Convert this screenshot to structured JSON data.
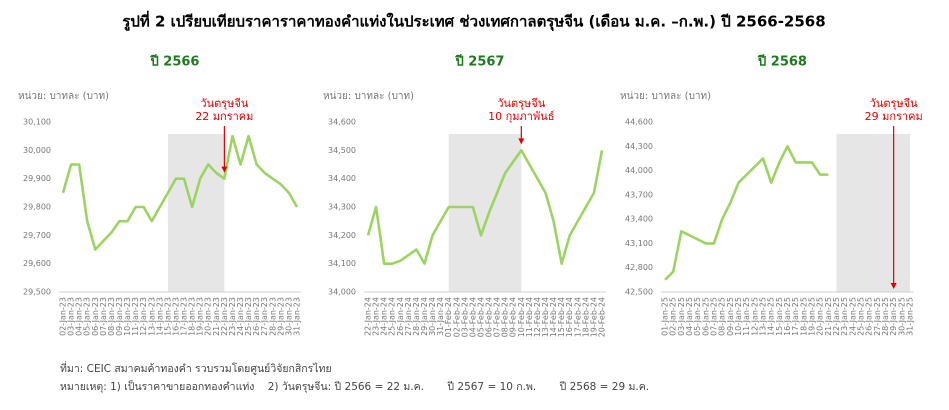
{
  "title": "รูปที่ 2 เปรียบเทียบราคาราคาทองคำแท่งในประเทศ ช่วงเทศกาลตรุษจีน (เดือน ม.ค. –ก.พ.) ปี 2566-2568",
  "chart_data": [
    {
      "type": "line",
      "title": "ปี 2566",
      "y_label": "หน่วย: บาทละ (บาท)",
      "color": "#9cd462",
      "grid": false,
      "categories": [
        "02-Jan-23",
        "03-Jan-23",
        "04-Jan-23",
        "05-Jan-23",
        "06-Jan-23",
        "07-Jan-23",
        "08-Jan-23",
        "09-Jan-23",
        "10-Jan-23",
        "11-Jan-23",
        "12-Jan-23",
        "13-Jan-23",
        "14-Jan-23",
        "15-Jan-23",
        "16-Jan-23",
        "17-Jan-23",
        "18-Jan-23",
        "19-Jan-23",
        "20-Jan-23",
        "21-Jan-23",
        "22-Jan-23",
        "23-Jan-23",
        "24-Jan-23",
        "25-Jan-23",
        "26-Jan-23",
        "27-Jan-23",
        "28-Jan-23",
        "29-Jan-23",
        "30-Jan-23",
        "31-Jan-23"
      ],
      "values": [
        29850,
        29950,
        29950,
        29750,
        29650,
        29680,
        29710,
        29750,
        29750,
        29800,
        29800,
        29750,
        29800,
        29850,
        29900,
        29900,
        29800,
        29900,
        29950,
        29920,
        29900,
        30050,
        29950,
        30050,
        29950,
        29920,
        29900,
        29880,
        29850,
        29800
      ],
      "ylim": [
        29500,
        30100
      ],
      "yticks": [
        {
          "value": 29500,
          "label": "29,500"
        },
        {
          "value": 29600,
          "label": "29,600"
        },
        {
          "value": 29700,
          "label": "29,700"
        },
        {
          "value": 29800,
          "label": "29,800"
        },
        {
          "value": 29900,
          "label": "29,900"
        },
        {
          "value": 30000,
          "label": "30,000"
        },
        {
          "value": 30100,
          "label": "30,100"
        }
      ],
      "highlight": [
        "15-Jan-23",
        "22-Jan-23"
      ],
      "annotation": {
        "text": [
          "วันตรุษจีน",
          "22 มกราคม"
        ],
        "category": "22-Jan-23",
        "color": "#e00000"
      }
    },
    {
      "type": "line",
      "title": "ปี 2567",
      "y_label": "หน่วย: บาทละ (บาท)",
      "color": "#9cd462",
      "grid": false,
      "categories": [
        "22-Jan-24",
        "23-Jan-24",
        "24-Jan-24",
        "25-Jan-24",
        "26-Jan-24",
        "27-Jan-24",
        "28-Jan-24",
        "29-Jan-24",
        "30-Jan-24",
        "31-Jan-24",
        "01-Feb-24",
        "02-Feb-24",
        "03-Feb-24",
        "04-Feb-24",
        "05-Feb-24",
        "06-Feb-24",
        "07-Feb-24",
        "08-Feb-24",
        "09-Feb-24",
        "10-Feb-24",
        "11-Feb-24",
        "12-Feb-24",
        "13-Feb-24",
        "14-Feb-24",
        "15-Feb-24",
        "16-Feb-24",
        "17-Feb-24",
        "18-Feb-24",
        "19-Feb-24",
        "20-Feb-24"
      ],
      "values": [
        34200,
        34300,
        34100,
        34100,
        34110,
        34130,
        34150,
        34100,
        34200,
        34250,
        34300,
        34300,
        34300,
        34300,
        34200,
        34280,
        34350,
        34420,
        34460,
        34500,
        34450,
        34400,
        34350,
        34250,
        34100,
        34200,
        34250,
        34300,
        34350,
        34500
      ],
      "ylim": [
        34000,
        34600
      ],
      "yticks": [
        {
          "value": 34000,
          "label": "34,000"
        },
        {
          "value": 34100,
          "label": "34,100"
        },
        {
          "value": 34200,
          "label": "34,200"
        },
        {
          "value": 34300,
          "label": "34,300"
        },
        {
          "value": 34400,
          "label": "34,400"
        },
        {
          "value": 34500,
          "label": "34,500"
        },
        {
          "value": 34600,
          "label": "34,600"
        }
      ],
      "highlight": [
        "01-Feb-24",
        "10-Feb-24"
      ],
      "annotation": {
        "text": [
          "วันตรุษจีน",
          "10 กุมภาพันธ์"
        ],
        "category": "10-Feb-24",
        "color": "#e00000"
      }
    },
    {
      "type": "line",
      "title": "ปี 2568",
      "y_label": "หน่วย: บาทละ (บาท)",
      "color": "#9cd462",
      "grid": false,
      "categories": [
        "01-Jan-25",
        "02-Jan-25",
        "03-Jan-25",
        "04-Jan-25",
        "05-Jan-25",
        "06-Jan-25",
        "07-Jan-25",
        "08-Jan-25",
        "09-Jan-25",
        "10-Jan-25",
        "11-Jan-25",
        "12-Jan-25",
        "13-Jan-25",
        "14-Jan-25",
        "15-Jan-25",
        "16-Jan-25",
        "17-Jan-25",
        "18-Jan-25",
        "19-Jan-25",
        "20-Jan-25",
        "21-Jan-25",
        "22-Jan-25",
        "23-Jan-25",
        "24-Jan-25",
        "25-Jan-25",
        "26-Jan-25",
        "27-Jan-25",
        "28-Jan-25",
        "29-Jan-25",
        "30-Jan-25",
        "31-Jan-25"
      ],
      "values": [
        42650,
        42750,
        43250,
        43200,
        43150,
        43100,
        43100,
        43400,
        43600,
        43850,
        43950,
        44050,
        44150,
        43850,
        44100,
        44300,
        44100,
        44100,
        44100,
        43950,
        43950,
        null,
        null,
        null,
        null,
        null,
        null,
        null,
        null,
        null,
        null
      ],
      "ylim": [
        42500,
        44600
      ],
      "yticks": [
        {
          "value": 42500,
          "label": "42,500"
        },
        {
          "value": 42800,
          "label": "42,800"
        },
        {
          "value": 43100,
          "label": "43,100"
        },
        {
          "value": 43400,
          "label": "43,400"
        },
        {
          "value": 43700,
          "label": "43,700"
        },
        {
          "value": 44000,
          "label": "44,000"
        },
        {
          "value": 44300,
          "label": "44,300"
        },
        {
          "value": 44600,
          "label": "44,600"
        }
      ],
      "highlight": [
        "22-Jan-25",
        "31-Jan-25"
      ],
      "annotation": {
        "text": [
          "วันตรุษจีน",
          "29 มกราคม"
        ],
        "category": "29-Jan-25",
        "color": "#e00000"
      }
    }
  ],
  "source": "ที่มา: CEIC สมาคมค้าทองคำ รวบรวมโดยศูนย์วิจัยกสิกรไทย",
  "note": "หมายเหตุ: 1) เป็นราคาขายออกทองคำแท่ง    2) วันตรุษจีน: ปี 2566 = 22 ม.ค.       ปี 2567 = 10 ก.พ.       ปี 2568 = 29 ม.ค."
}
